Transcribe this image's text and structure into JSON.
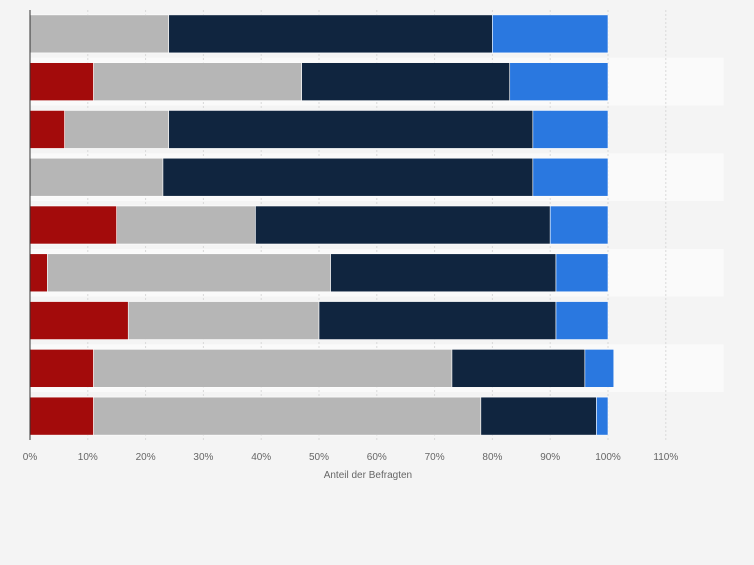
{
  "chart_data": {
    "type": "bar",
    "orientation": "horizontal",
    "stacked": true,
    "xlabel": "Anteil der Befragten",
    "xlim": [
      0,
      120
    ],
    "xticks": [
      0,
      10,
      20,
      30,
      40,
      50,
      60,
      70,
      80,
      90,
      100,
      110
    ],
    "tick_suffix": "%",
    "grid": true,
    "series": [
      {
        "color": "#a30b0b",
        "values": [
          0,
          11,
          6,
          0,
          15,
          3,
          17,
          11,
          11
        ]
      },
      {
        "color": "#b6b6b6",
        "values": [
          24,
          36,
          18,
          23,
          24,
          49,
          33,
          62,
          67
        ]
      },
      {
        "color": "#10253f",
        "values": [
          56,
          36,
          63,
          64,
          51,
          39,
          41,
          23,
          20
        ]
      },
      {
        "color": "#2a78e0",
        "values": [
          20,
          17,
          13,
          13,
          10,
          9,
          9,
          5,
          2
        ]
      }
    ]
  }
}
